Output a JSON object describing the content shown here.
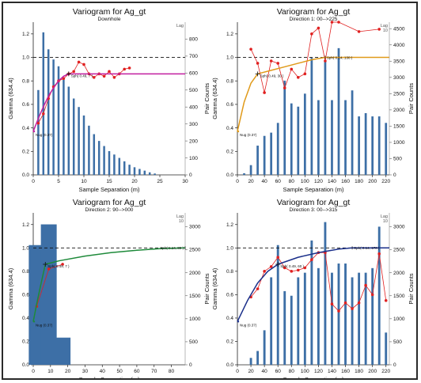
{
  "colors": {
    "bars": "#3d6fa6",
    "experimental": "#e02020",
    "sill_line": "#111111",
    "frame": "#2a2a2a"
  },
  "chart_data": [
    {
      "type": "bar",
      "title": "Variogram for Ag_gt",
      "subtitle": "Downhole",
      "xlabel": "Sample Separation (m)",
      "ylabel": "Gamma (634.4)",
      "y2label": "Pair Counts",
      "corner_label": "Lag",
      "xlim": [
        0,
        30
      ],
      "xticks": [
        0,
        5,
        10,
        15,
        20,
        25,
        30
      ],
      "ylim": [
        0,
        1.3
      ],
      "yticks": [
        0.0,
        0.2,
        0.4,
        0.6,
        0.8,
        1.0,
        1.2
      ],
      "y2lim": [
        0,
        900
      ],
      "y2ticks": [
        0,
        100,
        200,
        300,
        400,
        500,
        600,
        700,
        800
      ],
      "sill": 1.0,
      "model_color": "#c21fa0",
      "nugget_label": "Nug (0.37)",
      "structure_label": "Sph( 0.49, 7 )",
      "structure_point": [
        7,
        0.86
      ],
      "bars": {
        "x": [
          1,
          2,
          3,
          4,
          5,
          6,
          7,
          8,
          9,
          10,
          11,
          12,
          13,
          14,
          15,
          16,
          17,
          18,
          19,
          20,
          21,
          22,
          23,
          24
        ],
        "values": [
          500,
          840,
          740,
          680,
          640,
          560,
          520,
          450,
          400,
          350,
          290,
          240,
          200,
          170,
          140,
          120,
          100,
          80,
          60,
          45,
          35,
          25,
          15,
          8
        ]
      },
      "experimental": {
        "x": [
          1,
          2,
          3,
          4,
          5,
          6,
          7,
          8,
          9,
          10,
          11,
          12,
          13,
          14,
          15,
          16,
          17,
          18,
          19
        ],
        "values": [
          0.44,
          0.52,
          0.65,
          0.75,
          0.8,
          0.82,
          0.86,
          0.88,
          0.96,
          0.94,
          0.86,
          0.83,
          0.86,
          0.84,
          0.88,
          0.83,
          0.86,
          0.9,
          0.91
        ]
      },
      "model": {
        "x": [
          0,
          1,
          2,
          3,
          4,
          5,
          6,
          7,
          30
        ],
        "values": [
          0.37,
          0.48,
          0.58,
          0.67,
          0.74,
          0.8,
          0.84,
          0.86,
          0.86
        ]
      }
    },
    {
      "type": "bar",
      "title": "Variogram for Ag_gt",
      "subtitle": "Direction 1: 00-->225",
      "xlabel": "Sample Separation (m)",
      "ylabel": "Gamma (634.4)",
      "y2label": "Pair Counts",
      "corner_label": "Lag\n10",
      "xlim": [
        0,
        225
      ],
      "xticks": [
        0,
        20,
        40,
        60,
        80,
        100,
        120,
        140,
        160,
        180,
        200,
        220
      ],
      "ylim": [
        0,
        1.3
      ],
      "yticks": [
        0.0,
        0.2,
        0.4,
        0.6,
        0.8,
        1.0,
        1.2
      ],
      "y2lim": [
        0,
        4700
      ],
      "y2ticks": [
        0,
        500,
        1000,
        1500,
        2000,
        2500,
        3000,
        3500,
        4000,
        4500
      ],
      "sill": 1.0,
      "model_color": "#e09a1a",
      "nugget_label": "Nug (0.37)",
      "structure_label": "Sph( 0.49, 30 )",
      "structure_point": [
        30,
        0.86
      ],
      "structure2_label": "Sph( 0.14, 130 )",
      "structure2_point": [
        130,
        1.0
      ],
      "bars": {
        "x": [
          10,
          20,
          30,
          40,
          50,
          60,
          70,
          80,
          90,
          100,
          110,
          120,
          130,
          140,
          150,
          160,
          170,
          180,
          190,
          200,
          210,
          220
        ],
        "values": [
          50,
          300,
          900,
          1200,
          1300,
          1600,
          2900,
          2200,
          2100,
          2500,
          3600,
          2300,
          3500,
          2300,
          3900,
          2300,
          2600,
          1800,
          1900,
          1800,
          1800,
          1600
        ]
      },
      "experimental": {
        "x": [
          20,
          30,
          40,
          50,
          60,
          70,
          80,
          90,
          100,
          110,
          120,
          130,
          140,
          150,
          180,
          210
        ],
        "values": [
          1.07,
          0.95,
          0.7,
          0.97,
          0.95,
          0.74,
          0.9,
          0.83,
          0.86,
          1.2,
          1.25,
          0.97,
          1.3,
          1.3,
          1.22,
          1.24
        ]
      },
      "model": {
        "x": [
          0,
          10,
          20,
          30,
          50,
          70,
          90,
          110,
          130,
          225
        ],
        "values": [
          0.37,
          0.62,
          0.78,
          0.86,
          0.89,
          0.92,
          0.95,
          0.98,
          1.0,
          1.0
        ]
      }
    },
    {
      "type": "bar",
      "title": "Variogram for Ag_gt",
      "subtitle": "Direction 2: 90-->000",
      "xlabel": "Sample Separation (m)",
      "ylabel": "Gamma (634.4)",
      "y2label": "Pair Counts",
      "corner_label": "Lag\n10",
      "xlim": [
        0,
        88
      ],
      "xticks": [
        0,
        10,
        20,
        30,
        40,
        50,
        60,
        70,
        80
      ],
      "ylim": [
        0,
        1.3
      ],
      "yticks": [
        0.0,
        0.2,
        0.4,
        0.6,
        0.8,
        1.0,
        1.2
      ],
      "y2lim": [
        0,
        3300
      ],
      "y2ticks": [
        0,
        500,
        1000,
        1500,
        2000,
        2500,
        3000
      ],
      "sill": 1.0,
      "model_color": "#1e8a3a",
      "nugget_label": "Nug (0.37)",
      "structure_label": "Sph( 0.49, 7 )",
      "structure_point": [
        7,
        0.86
      ],
      "structure2_label": "Sph( 0.14, 89 )",
      "structure2_point": [
        88,
        1.0
      ],
      "bars": {
        "x": [
          2,
          9,
          17
        ],
        "values": [
          2600,
          3050,
          590
        ]
      },
      "experimental": {
        "x": [
          2,
          9,
          17
        ],
        "values": [
          0.5,
          0.82,
          0.86
        ]
      },
      "model": {
        "x": [
          0,
          2,
          4,
          7,
          15,
          30,
          45,
          60,
          75,
          88
        ],
        "values": [
          0.37,
          0.52,
          0.66,
          0.86,
          0.89,
          0.93,
          0.96,
          0.98,
          0.995,
          1.0
        ]
      }
    },
    {
      "type": "bar",
      "title": "Variogram for Ag_gt",
      "subtitle": "Direction 3: 00-->315",
      "xlabel": "Sample Separation (m)",
      "ylabel": "Gamma (634.4)",
      "y2label": "Pair Counts",
      "corner_label": "Lag\n10",
      "xlim": [
        0,
        225
      ],
      "xticks": [
        0,
        20,
        40,
        60,
        80,
        100,
        120,
        140,
        160,
        180,
        200,
        220
      ],
      "ylim": [
        0,
        1.3
      ],
      "yticks": [
        0.0,
        0.2,
        0.4,
        0.6,
        0.8,
        1.0,
        1.2
      ],
      "y2lim": [
        0,
        3300
      ],
      "y2ticks": [
        0,
        500,
        1000,
        1500,
        2000,
        2500,
        3000
      ],
      "sill": 1.0,
      "model_color": "#1a2f8a",
      "nugget_label": "Nug (0.37)",
      "structure_label": "Sph( 0.49, 60 )",
      "structure_point": [
        60,
        0.86
      ],
      "structure2_label": "Sph( 0.14, 170 )",
      "structure2_point": [
        170,
        1.0
      ],
      "bars": {
        "x": [
          20,
          30,
          40,
          50,
          60,
          70,
          80,
          90,
          100,
          110,
          120,
          130,
          140,
          150,
          160,
          170,
          180,
          190,
          200,
          210,
          220
        ],
        "values": [
          150,
          300,
          750,
          1900,
          2600,
          1600,
          1500,
          1900,
          2000,
          2700,
          2100,
          3100,
          2000,
          2200,
          2200,
          1900,
          2000,
          2000,
          2100,
          3000,
          700
        ]
      },
      "experimental": {
        "x": [
          20,
          30,
          40,
          50,
          60,
          70,
          80,
          90,
          100,
          110,
          120,
          130,
          140,
          150,
          160,
          170,
          180,
          190,
          200,
          210,
          220
        ],
        "values": [
          0.58,
          0.65,
          0.8,
          0.84,
          0.92,
          0.83,
          0.8,
          0.81,
          0.83,
          0.9,
          0.96,
          0.96,
          0.52,
          0.46,
          0.53,
          0.48,
          0.53,
          0.68,
          0.6,
          0.95,
          0.55
        ]
      },
      "model": {
        "x": [
          0,
          15,
          30,
          45,
          60,
          90,
          120,
          150,
          170,
          225
        ],
        "values": [
          0.37,
          0.55,
          0.7,
          0.8,
          0.86,
          0.92,
          0.96,
          0.99,
          1.0,
          1.0
        ]
      }
    }
  ]
}
